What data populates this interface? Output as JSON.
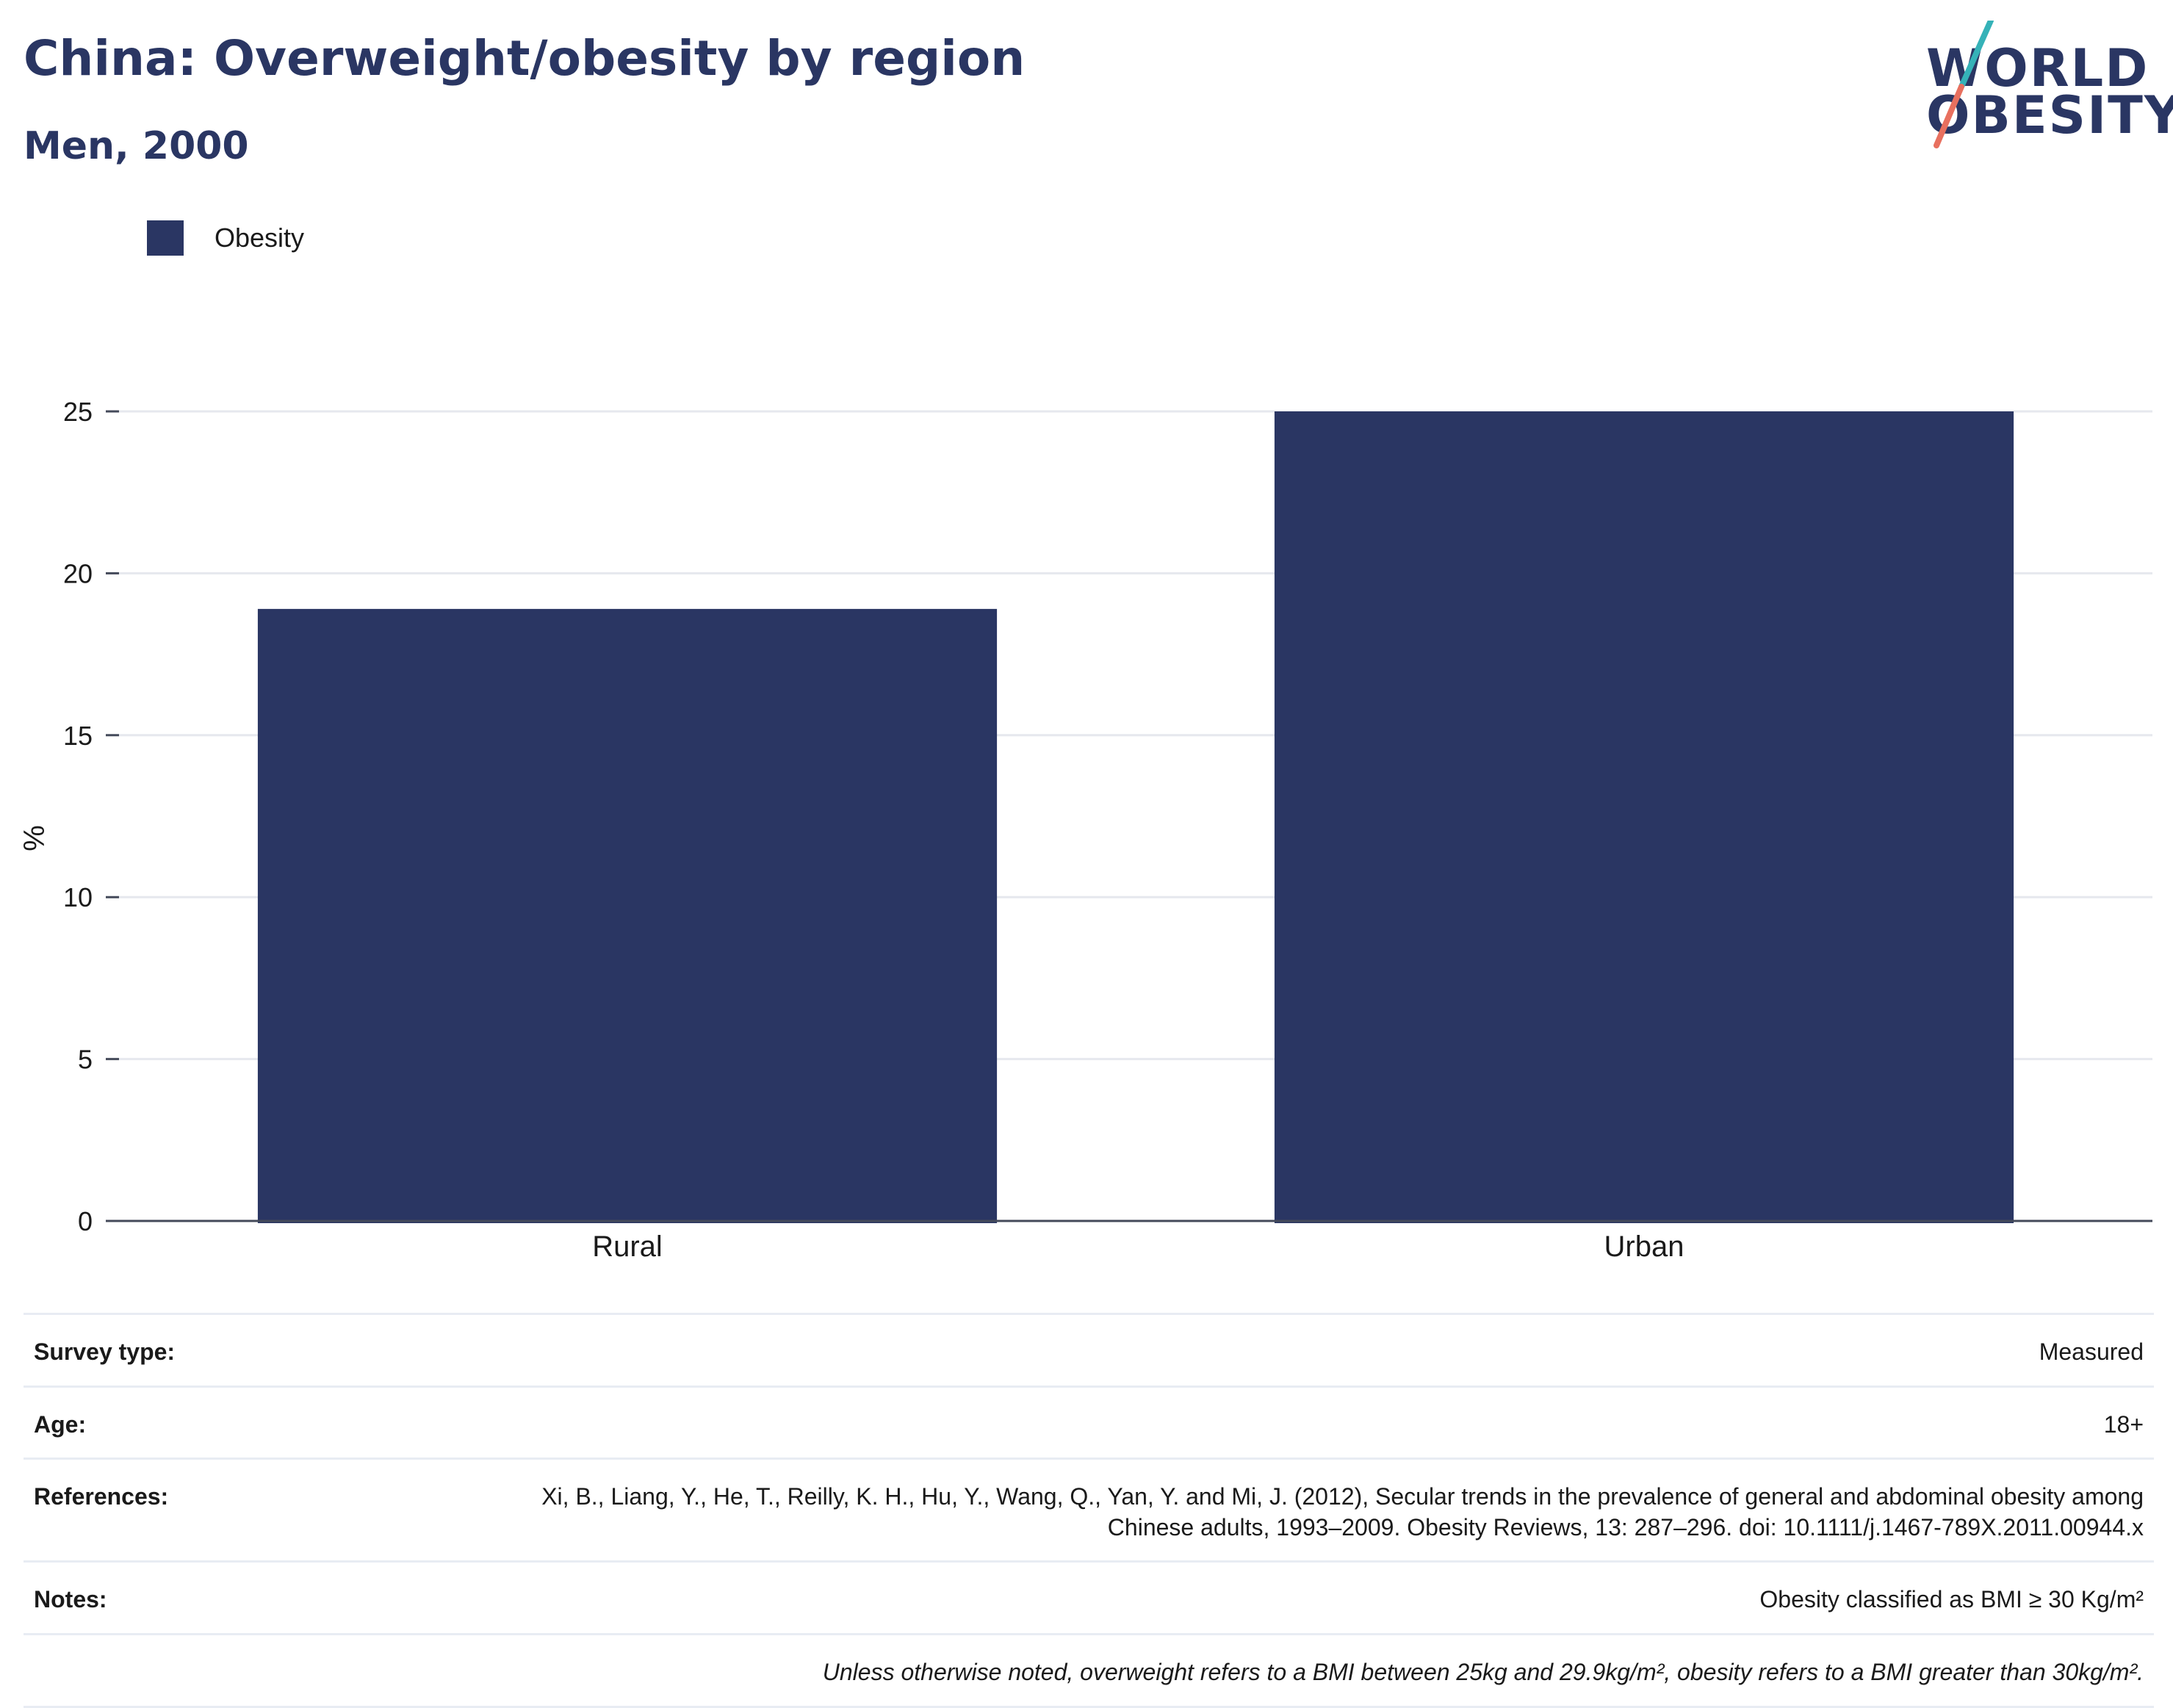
{
  "header": {
    "title": "China: Overweight/obesity by region",
    "subtitle": "Men, 2000"
  },
  "logo": {
    "line1": "WORLD",
    "line2": "OBESITY",
    "colors": {
      "navy": "#2a3663",
      "teal": "#35b2b8",
      "coral": "#e8705f"
    }
  },
  "legend": {
    "label": "Obesity",
    "color": "#2a3663"
  },
  "chart_data": {
    "type": "bar",
    "categories": [
      "Rural",
      "Urban"
    ],
    "series": [
      {
        "name": "Obesity",
        "values": [
          18.9,
          25.0
        ],
        "color": "#2a3663"
      }
    ],
    "title": "China: Overweight/obesity by region",
    "subtitle": "Men, 2000",
    "xlabel": "",
    "ylabel": "%",
    "ylim": [
      0,
      25
    ],
    "yticks": [
      0,
      5,
      10,
      15,
      20,
      25
    ],
    "grid": true,
    "legend_position": "top-left"
  },
  "meta": {
    "survey_type": {
      "label": "Survey type:",
      "value": "Measured"
    },
    "age": {
      "label": "Age:",
      "value": "18+"
    },
    "references": {
      "label": "References:",
      "value": "Xi, B., Liang, Y., He, T., Reilly, K. H., Hu, Y., Wang, Q., Yan, Y. and Mi, J. (2012), Secular trends in the prevalence of general and abdominal obesity among Chinese adults, 1993–2009. Obesity Reviews, 13: 287–296. doi: 10.1111/j.1467-789X.2011.00944.x"
    },
    "notes": {
      "label": "Notes:",
      "value": "Obesity classified as BMI ≥ 30 Kg/m²"
    },
    "footnote": "Unless otherwise noted, overweight refers to a BMI between 25kg and 29.9kg/m², obesity refers to a BMI greater than 30kg/m²."
  }
}
